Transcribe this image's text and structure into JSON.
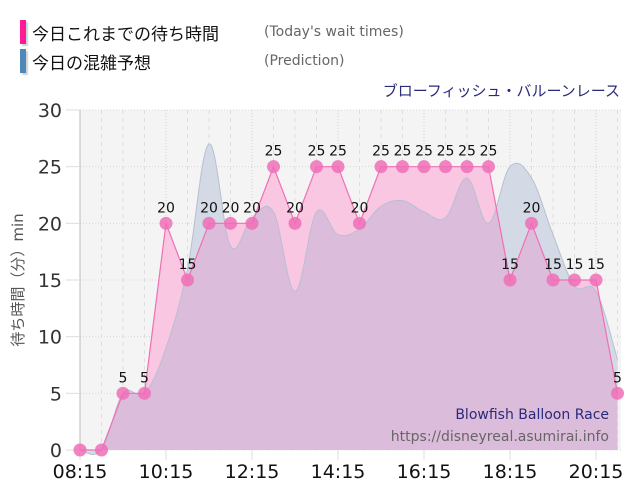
{
  "legend": {
    "today": {
      "label_jp": "今日これまでの待ち時間",
      "label_en": "(Today's wait times)",
      "color": "#ff1a9a"
    },
    "prediction": {
      "label_jp": "今日の混雑予想",
      "label_en": "(Prediction)",
      "color": "#4f87b8"
    }
  },
  "attraction_name_jp": "ブローフィッシュ・バルーンレース",
  "watermark": {
    "attraction_en": "Blowfish Balloon Race",
    "url": "https://disneyreal.asumirai.info"
  },
  "colors": {
    "today_fill": "#f9c4df",
    "today_line": "#f06fb4",
    "today_dot": "#ee6fb6",
    "prediction_fill": "#d3d9e5",
    "prediction_line": "#b8bfd0",
    "overlap_fill": "#dcbcdb",
    "plot_bg": "#f4f4f4"
  },
  "chart_data": {
    "type": "area",
    "title": "ブローフィッシュ・バルーンレース",
    "xlabel": "",
    "ylabel": "待ち時間（分）min",
    "ylim": [
      0,
      30
    ],
    "yticks": [
      0,
      5,
      10,
      15,
      20,
      25,
      30
    ],
    "xticks": [
      "08:15",
      "10:15",
      "12:15",
      "14:15",
      "16:15",
      "18:15",
      "20:15"
    ],
    "grid": true,
    "legend_position": "top-left",
    "x": [
      "08:15",
      "08:45",
      "09:15",
      "09:45",
      "10:15",
      "10:45",
      "11:15",
      "11:45",
      "12:15",
      "12:45",
      "13:15",
      "13:45",
      "14:15",
      "14:45",
      "15:15",
      "15:45",
      "16:15",
      "16:45",
      "17:15",
      "17:45",
      "18:15",
      "18:45",
      "19:15",
      "19:45",
      "20:15",
      "20:45"
    ],
    "series": [
      {
        "name": "今日これまでの待ち時間 (Today's wait times)",
        "values": [
          0,
          0,
          5,
          5,
          20,
          15,
          20,
          20,
          20,
          25,
          20,
          25,
          25,
          20,
          25,
          25,
          25,
          25,
          25,
          25,
          15,
          20,
          15,
          15,
          15,
          5
        ]
      },
      {
        "name": "今日の混雑予想 (Prediction)",
        "values": [
          0,
          0,
          5,
          5,
          9,
          16,
          27,
          18,
          20.5,
          21,
          14,
          21,
          19,
          19.5,
          21.5,
          22,
          21,
          20.5,
          24,
          20,
          25,
          24,
          19,
          14.5,
          14,
          8
        ]
      }
    ]
  }
}
